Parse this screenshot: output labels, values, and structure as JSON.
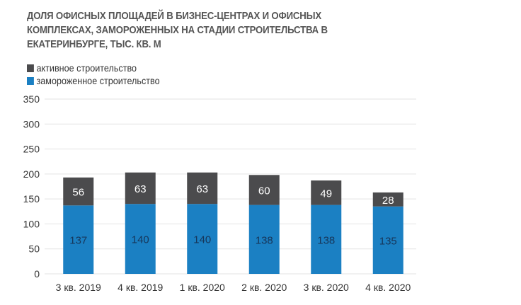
{
  "chart_data": {
    "type": "bar",
    "stacked": true,
    "title": "ДОЛЯ ОФИСНЫХ ПЛОЩАДЕЙ В БИЗНЕС-ЦЕНТРАХ И ОФИСНЫХ КОМПЛЕКСАХ, ЗАМОРОЖЕННЫХ НА СТАДИИ СТРОИТЕЛЬСТВА В ЕКАТЕРИНБУРГЕ, ТЫС. КВ. М",
    "xlabel": "",
    "ylabel": "",
    "ylim": [
      0,
      350
    ],
    "yticks": [
      0,
      50,
      100,
      150,
      200,
      250,
      300,
      350
    ],
    "grid": true,
    "legend_position": "top-left",
    "categories": [
      "3 кв. 2019",
      "4 кв. 2019",
      "1 кв. 2020",
      "2 кв. 2020",
      "3 кв. 2020",
      "4 кв. 2020"
    ],
    "series": [
      {
        "name": "замороженное строительство",
        "color": "#1b80c3",
        "label_color": "#17365a",
        "values": [
          137,
          140,
          140,
          138,
          138,
          135
        ]
      },
      {
        "name": "активное строительство",
        "color": "#4b4b4d",
        "label_color": "#ffffff",
        "values": [
          56,
          63,
          63,
          60,
          49,
          28
        ]
      }
    ]
  }
}
